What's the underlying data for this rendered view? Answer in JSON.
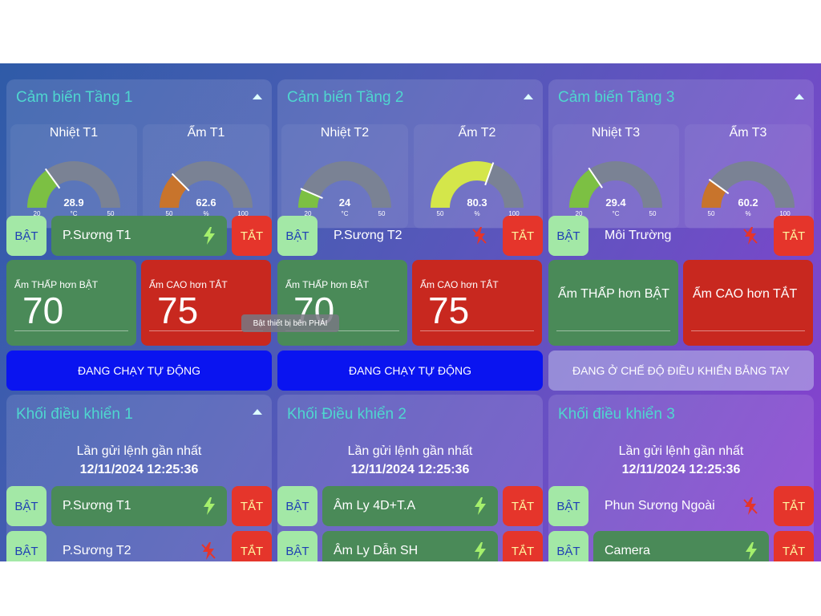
{
  "sensors": [
    {
      "title": "Cảm biến Tầng 1",
      "gauges": [
        {
          "label": "Nhiệt T1",
          "value": "28.9",
          "unit": "°C",
          "min": "20",
          "max": "50",
          "fraction": 0.3,
          "color": "#7cc043"
        },
        {
          "label": "Ẩm T1",
          "value": "62.6",
          "unit": "%",
          "min": "50",
          "max": "100",
          "fraction": 0.25,
          "color": "#c8742c"
        }
      ],
      "switch": {
        "on_label": "BẬT",
        "device": "P.Sương T1",
        "state_icon": "bolt-on-icon",
        "off_label": "TẮT"
      },
      "low": {
        "label": "Ẩm THẤP hơn BẬT",
        "value": "70"
      },
      "high": {
        "label": "Ẩm CAO hơn TẮT",
        "value": "75"
      },
      "mode": "ĐANG CHẠY TỰ ĐỘNG"
    },
    {
      "title": "Cảm biến Tầng 2",
      "gauges": [
        {
          "label": "Nhiệt T2",
          "value": "24",
          "unit": "°C",
          "min": "20",
          "max": "50",
          "fraction": 0.13,
          "color": "#7cc043"
        },
        {
          "label": "Ẩm T2",
          "value": "80.3",
          "unit": "%",
          "min": "50",
          "max": "100",
          "fraction": 0.61,
          "color": "#d4e64a"
        }
      ],
      "switch": {
        "on_label": "BẬT",
        "device": "P.Sương T2",
        "state_icon": "bolt-off-icon",
        "off_label": "TẮT"
      },
      "low": {
        "label": "Ẩm THẤP hơn BẬT",
        "value": "70"
      },
      "high": {
        "label": "Ẩm CAO hơn TẮT",
        "value": "75"
      },
      "mode": "ĐANG CHẠY TỰ ĐỘNG"
    },
    {
      "title": "Cảm biến Tầng 3",
      "gauges": [
        {
          "label": "Nhiệt T3",
          "value": "29.4",
          "unit": "°C",
          "min": "20",
          "max": "50",
          "fraction": 0.31,
          "color": "#7cc043"
        },
        {
          "label": "Ẩm T3",
          "value": "60.2",
          "unit": "%",
          "min": "50",
          "max": "100",
          "fraction": 0.2,
          "color": "#c8742c"
        }
      ],
      "switch": {
        "on_label": "BẬT",
        "device": "Môi Trường",
        "state_icon": "bolt-off-icon",
        "off_label": "TẮT"
      },
      "low": {
        "label": "Ẩm THẤP hơn BẬT",
        "value": ""
      },
      "high": {
        "label": "Ẩm CAO hơn TẮT",
        "value": ""
      },
      "mode": "ĐANG Ở CHẾ ĐỘ ĐIỀU KHIỂN BẰNG TAY"
    }
  ],
  "tooltip": "Bật thiết bị bên PHẢI",
  "controls": [
    {
      "title": "Khối điều khiển 1",
      "last_sent_label": "Lần gửi lệnh gần nhất",
      "last_sent_time": "12/11/2024 12:25:36",
      "rows": [
        {
          "on_label": "BẬT",
          "device": "P.Sương T1",
          "state_icon": "bolt-on-icon",
          "off_label": "TẮT"
        },
        {
          "on_label": "BẬT",
          "device": "P.Sương T2",
          "state_icon": "bolt-off-icon",
          "off_label": "TẮT"
        }
      ]
    },
    {
      "title": "Khối Điều khiển 2",
      "last_sent_label": "Lần gửi lệnh gần nhất",
      "last_sent_time": "12/11/2024 12:25:36",
      "rows": [
        {
          "on_label": "BẬT",
          "device": "Âm Ly 4D+T.A",
          "state_icon": "bolt-on-icon",
          "off_label": "TẮT"
        },
        {
          "on_label": "BẬT",
          "device": "Âm Ly Dẫn SH",
          "state_icon": "bolt-on-icon",
          "off_label": "TẮT"
        }
      ]
    },
    {
      "title": "Khối điều khiển 3",
      "last_sent_label": "Lần gửi lệnh gần nhất",
      "last_sent_time": "12/11/2024 12:25:36",
      "rows": [
        {
          "on_label": "BẬT",
          "device": "Phun Sương Ngoài",
          "state_icon": "bolt-off-icon",
          "off_label": "TẮT"
        },
        {
          "on_label": "BẬT",
          "device": "Camera",
          "state_icon": "bolt-on-icon",
          "off_label": "TẮT"
        }
      ]
    }
  ]
}
